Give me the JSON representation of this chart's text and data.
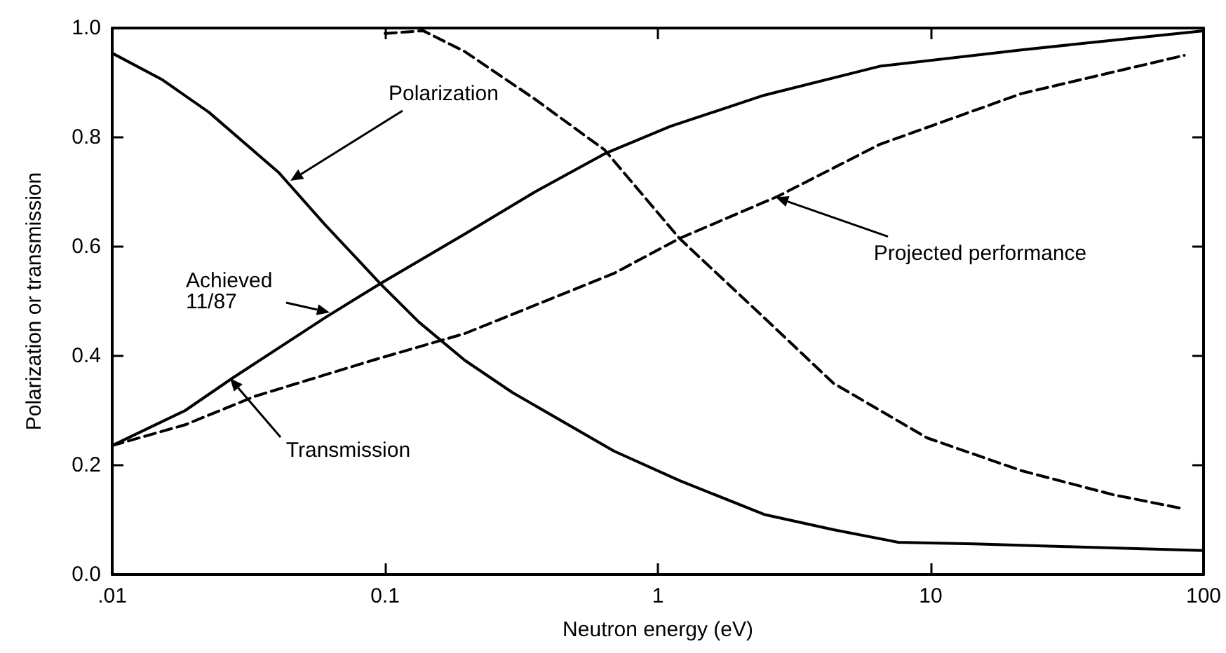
{
  "chart_data": {
    "type": "line",
    "xlabel": "Neutron energy (eV)",
    "ylabel": "Polarization or transmission",
    "log": "x",
    "grid": false,
    "marker": "none",
    "xlim": [
      0.01,
      100
    ],
    "xticks": [
      {
        "value": 0.01,
        "label": ".01"
      },
      {
        "value": 0.1,
        "label": "0.1"
      },
      1,
      10,
      100
    ],
    "ylim": [
      0,
      1
    ],
    "yticks": [
      {
        "value": 0,
        "label": "0.0"
      },
      0.2,
      0.4,
      0.6,
      0.8,
      {
        "value": 1,
        "label": "1.0"
      }
    ],
    "series": [
      {
        "color": "#000000",
        "line_style": "solid",
        "x": [
          0.01,
          0.0153,
          0.0226,
          0.0407,
          0.0603,
          0.0966,
          0.133,
          0.196,
          0.293,
          0.69,
          1.2,
          2.45,
          4.4,
          7.6,
          14.4,
          31.6,
          100
        ],
        "values": [
          0.954,
          0.905,
          0.846,
          0.736,
          0.64,
          0.531,
          0.462,
          0.392,
          0.333,
          0.226,
          0.172,
          0.11,
          0.082,
          0.059,
          0.056,
          0.051,
          0.044
        ]
      },
      {
        "color": "#000000",
        "line_style": "solid",
        "x": [
          0.01,
          0.0185,
          0.0275,
          0.0603,
          0.0966,
          0.196,
          0.354,
          0.638,
          1.11,
          2.45,
          6.5,
          21.5,
          100
        ],
        "values": [
          0.236,
          0.3,
          0.359,
          0.47,
          0.533,
          0.623,
          0.7,
          0.77,
          0.82,
          0.877,
          0.93,
          0.96,
          0.995
        ]
      },
      {
        "color": "#000000",
        "line_style": "dashed",
        "x": [
          0.1,
          0.138,
          0.196,
          0.354,
          0.638,
          1.2,
          2.45,
          4.4,
          9.7,
          21.5,
          46.7,
          85
        ],
        "values": [
          0.99,
          0.995,
          0.957,
          0.87,
          0.777,
          0.615,
          0.47,
          0.35,
          0.25,
          0.19,
          0.146,
          0.12
        ]
      },
      {
        "color": "#000000",
        "line_style": "dashed",
        "x": [
          0.01,
          0.0185,
          0.0333,
          0.09,
          0.196,
          0.69,
          1.2,
          2.75,
          6.5,
          21.5,
          85
        ],
        "values": [
          0.236,
          0.274,
          0.326,
          0.392,
          0.441,
          0.551,
          0.615,
          0.692,
          0.787,
          0.88,
          0.95
        ]
      }
    ],
    "annotations": [
      {
        "text": "Polarization",
        "x": 0.045,
        "y": 0.72
      },
      {
        "text": "Achieved 11/87",
        "x": 0.063,
        "y": 0.48
      },
      {
        "text": "Transmission",
        "x": 0.027,
        "y": 0.36
      },
      {
        "text": "Projected performance",
        "x": 2.7,
        "y": 0.69
      }
    ]
  }
}
